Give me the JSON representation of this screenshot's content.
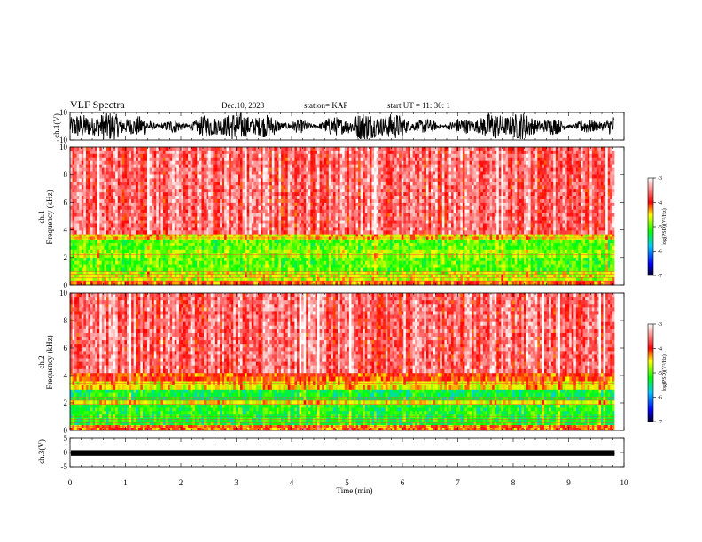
{
  "header": {
    "title": "VLF Spectra",
    "date": "Dec.10, 2023",
    "station": "station= KAP",
    "start": "start  UT =    11: 30: 1"
  },
  "chart_data": [
    {
      "type": "line",
      "name": "waveform-ch1",
      "ylabel": "ch.1(V)",
      "ylim": [
        -10,
        10
      ],
      "yticks": [
        "10",
        "-10"
      ],
      "xlim": [
        0,
        10
      ],
      "description_values": {
        "approx_amplitude_range": [
          -10,
          10
        ]
      }
    },
    {
      "type": "heatmap",
      "name": "spectrogram-ch1",
      "ylabel": "ch.1\nFrequency (kHz)",
      "ylim": [
        0,
        10
      ],
      "yticks": [
        "0",
        "2",
        "4",
        "6",
        "8",
        "10"
      ],
      "xlim": [
        0,
        10
      ],
      "data_end_min": 9.83,
      "colorbar": {
        "label": "log(PSD)(V²/Hz)",
        "range": [
          -7,
          -3
        ],
        "ticks": [
          "-3",
          "-4",
          "-5",
          "-6",
          "-7"
        ]
      },
      "bands": [
        {
          "f_range": [
            0,
            0.35
          ],
          "level": -4.2
        },
        {
          "f_range": [
            0.35,
            1.0
          ],
          "level": -4.7
        },
        {
          "f_range": [
            1.0,
            2.0
          ],
          "level": -5.0
        },
        {
          "f_range": [
            2.0,
            2.6
          ],
          "level": -4.8
        },
        {
          "f_range": [
            2.6,
            3.3
          ],
          "level": -5.0
        },
        {
          "f_range": [
            3.3,
            3.7
          ],
          "level": -4.5
        },
        {
          "f_range": [
            3.7,
            10.0
          ],
          "level": -3.6
        }
      ]
    },
    {
      "type": "heatmap",
      "name": "spectrogram-ch2",
      "ylabel": "ch.2\nFrequency (kHz)",
      "ylim": [
        0,
        10
      ],
      "yticks": [
        "0",
        "2",
        "4",
        "6",
        "8",
        "10"
      ],
      "xlim": [
        0,
        10
      ],
      "data_end_min": 9.83,
      "colorbar": {
        "label": "log(PSD)(V²/Hz)",
        "range": [
          -7,
          -3
        ],
        "ticks": [
          "-3",
          "-4",
          "-5",
          "-6",
          "-7"
        ]
      },
      "bands": [
        {
          "f_range": [
            0,
            0.4
          ],
          "level": -4.2
        },
        {
          "f_range": [
            0.4,
            1.9
          ],
          "level": -5.2
        },
        {
          "f_range": [
            1.9,
            2.2
          ],
          "level": -4.6
        },
        {
          "f_range": [
            2.2,
            3.0
          ],
          "level": -5.3
        },
        {
          "f_range": [
            3.0,
            3.6
          ],
          "level": -4.5
        },
        {
          "f_range": [
            3.6,
            4.2
          ],
          "level": -4.1
        },
        {
          "f_range": [
            4.2,
            10.0
          ],
          "level": -3.6
        }
      ]
    },
    {
      "type": "line",
      "name": "waveform-ch3",
      "ylabel": "ch.3(V)",
      "ylim": [
        -5,
        5
      ],
      "yticks": [
        "5",
        "0",
        "-5"
      ],
      "xlim": [
        0,
        10
      ],
      "description_values": {
        "approx_level": -0.2,
        "approx_amplitude": 0.3
      }
    }
  ],
  "xaxis": {
    "label": "Time (min)",
    "ticks": [
      "0",
      "1",
      "2",
      "3",
      "4",
      "5",
      "6",
      "7",
      "8",
      "9",
      "10"
    ]
  },
  "colors": {
    "waveform": "#000000",
    "colormap": [
      "#000030",
      "#0000ff",
      "#00c8ff",
      "#00ff00",
      "#ffff00",
      "#ff0000",
      "#ffffff"
    ]
  }
}
